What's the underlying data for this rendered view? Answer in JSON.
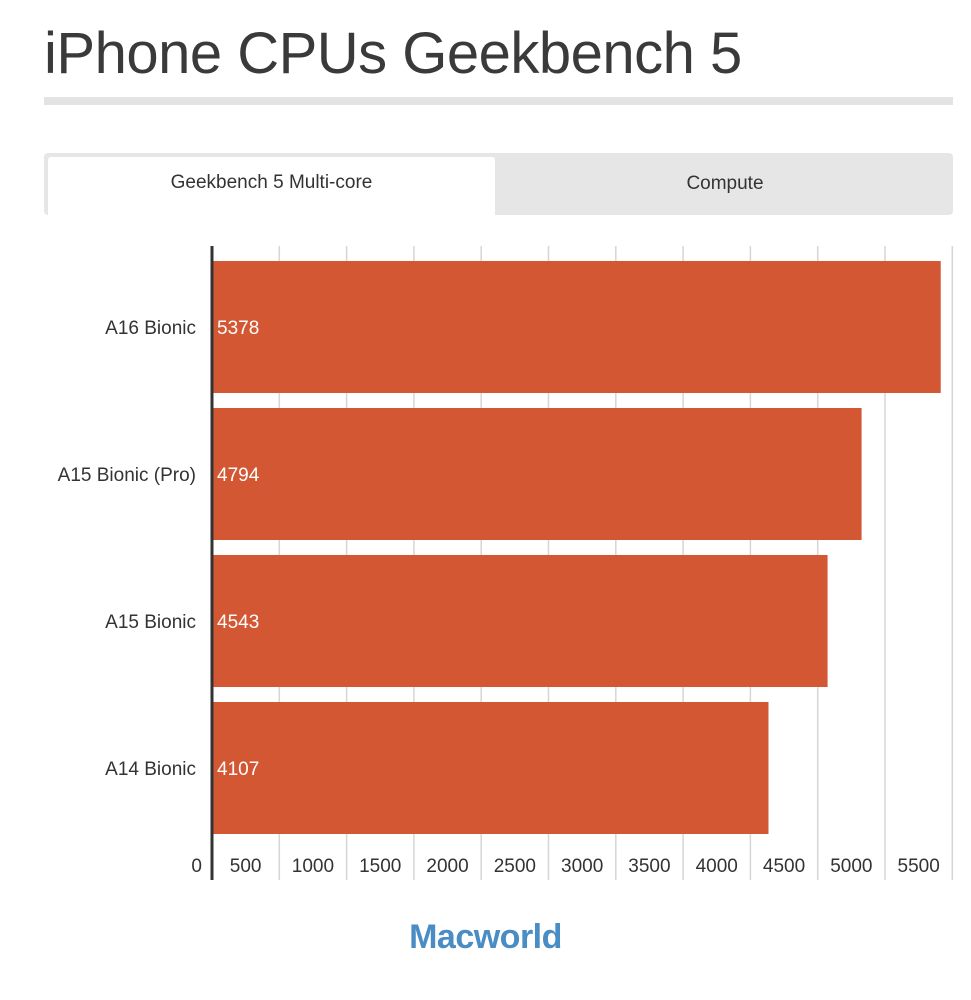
{
  "page": {
    "title": "iPhone CPUs Geekbench 5",
    "brand": "Macworld"
  },
  "tabs": [
    {
      "label": "Geekbench 5 Multi-core",
      "active": true
    },
    {
      "label": "Compute",
      "active": false
    }
  ],
  "colors": {
    "bar": "#d45733",
    "grid": "#d6d6d6",
    "axis": "#333333",
    "brand": "#4a8cc4"
  },
  "chart_data": {
    "type": "bar",
    "orientation": "horizontal",
    "categories": [
      "A16 Bionic",
      "A15 Bionic (Pro)",
      "A15 Bionic",
      "A14 Bionic"
    ],
    "values": [
      5378,
      4794,
      4543,
      4107
    ],
    "data_labels": [
      "5378",
      "4794",
      "4543",
      "4107"
    ],
    "x_ticks": [
      "0",
      "500",
      "1000",
      "1500",
      "2000",
      "2500",
      "3000",
      "3500",
      "4000",
      "4500",
      "5000",
      "5500"
    ],
    "xlim": [
      0,
      5500
    ],
    "grid": true
  }
}
